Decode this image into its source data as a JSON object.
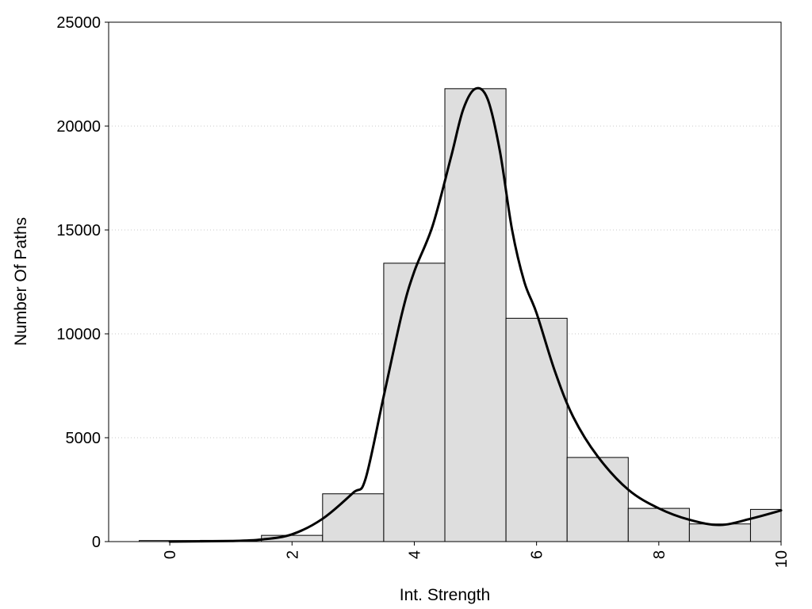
{
  "chart_data": {
    "type": "bar",
    "title": "",
    "xlabel": "Int. Strength",
    "ylabel": "Number Of Paths",
    "xlim": [
      -1,
      10
    ],
    "ylim": [
      0,
      25000
    ],
    "x_ticks": [
      0,
      2,
      4,
      6,
      8,
      10
    ],
    "y_ticks": [
      0,
      5000,
      10000,
      15000,
      20000,
      25000
    ],
    "grid": "horizontal dotted",
    "bar_width": 1,
    "x": [
      0,
      1,
      2,
      3,
      4,
      5,
      6,
      7,
      8,
      9,
      10
    ],
    "values": [
      50,
      60,
      300,
      2300,
      13400,
      21800,
      10750,
      4050,
      1600,
      850,
      1550
    ],
    "smooth_curve": {
      "x": [
        0,
        1,
        1.5,
        2,
        2.5,
        3,
        3.2,
        3.5,
        3.8,
        4,
        4.3,
        4.6,
        4.8,
        5,
        5.2,
        5.4,
        5.6,
        5.8,
        6,
        6.3,
        6.6,
        7,
        7.5,
        8,
        8.5,
        9,
        9.5,
        10
      ],
      "y": [
        0,
        30,
        100,
        350,
        1100,
        2350,
        3000,
        7000,
        11000,
        13000,
        15200,
        18500,
        20800,
        21800,
        21300,
        18800,
        15000,
        12500,
        11000,
        8200,
        6000,
        4100,
        2500,
        1600,
        1050,
        800,
        1100,
        1500
      ]
    },
    "colors": {
      "bar_fill": "#dedede",
      "bar_stroke": "#000000",
      "curve": "#000000"
    }
  }
}
